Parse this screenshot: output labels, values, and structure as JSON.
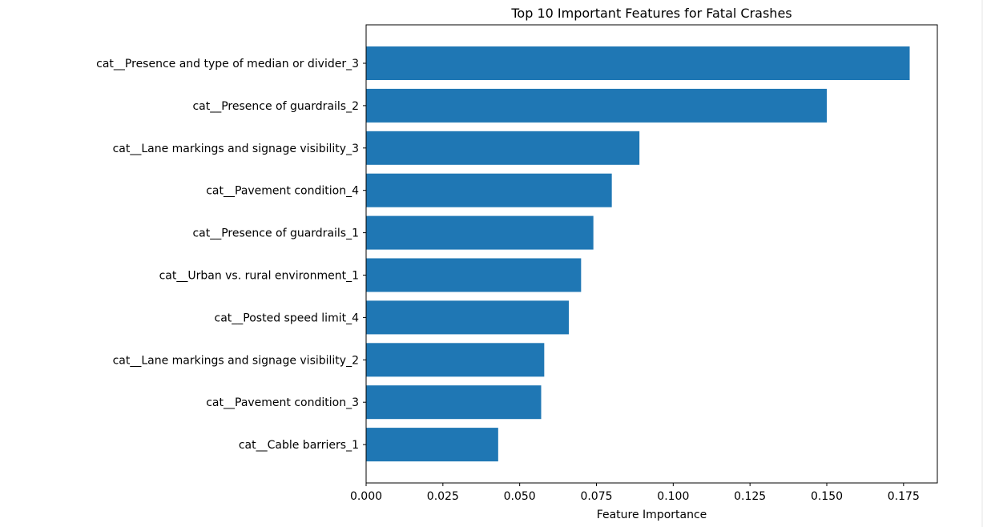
{
  "chart_data": {
    "type": "bar",
    "orientation": "horizontal",
    "title": "Top 10 Important Features for Fatal Crashes",
    "xlabel": "Feature Importance",
    "ylabel": "",
    "categories": [
      "cat__Presence and type of median or divider_3",
      "cat__Presence of guardrails_2",
      "cat__Lane markings and signage visibility_3",
      "cat__Pavement condition_4",
      "cat__Presence of guardrails_1",
      "cat__Urban vs. rural environment_1",
      "cat__Posted speed limit_4",
      "cat__Lane markings and signage visibility_2",
      "cat__Pavement condition_3",
      "cat__Cable barriers_1"
    ],
    "values": [
      0.177,
      0.15,
      0.089,
      0.08,
      0.074,
      0.07,
      0.066,
      0.058,
      0.057,
      0.043
    ],
    "xlim": [
      0,
      0.186
    ],
    "xticks": [
      0.0,
      0.025,
      0.05,
      0.075,
      0.1,
      0.125,
      0.15,
      0.175
    ],
    "xtick_labels": [
      "0.000",
      "0.025",
      "0.050",
      "0.075",
      "0.100",
      "0.125",
      "0.150",
      "0.175"
    ],
    "bar_color": "#1f77b4",
    "grid": false,
    "legend": "none"
  }
}
